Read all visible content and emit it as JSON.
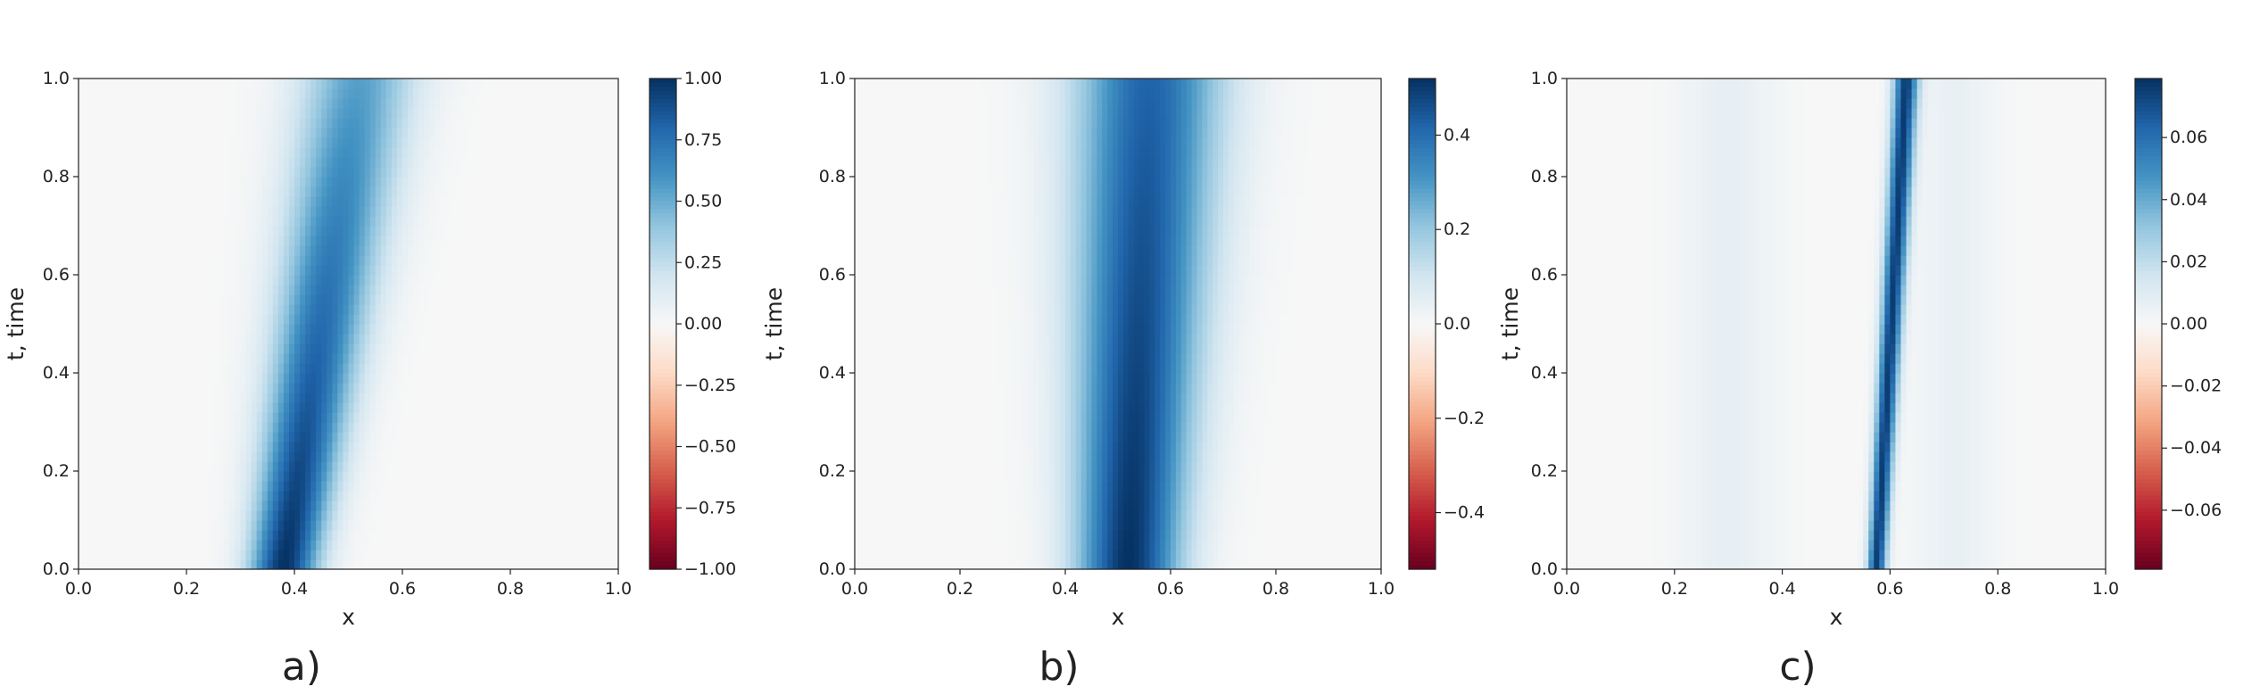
{
  "chart_data": [
    {
      "type": "heatmap",
      "panel_label": "a)",
      "xlabel": "x",
      "ylabel": "t, time",
      "xlim": [
        0.0,
        1.0
      ],
      "ylim": [
        0.0,
        1.0
      ],
      "xticks": [
        "0.0",
        "0.2",
        "0.4",
        "0.6",
        "0.8",
        "1.0"
      ],
      "yticks": [
        "0.0",
        "0.2",
        "0.4",
        "0.6",
        "0.8",
        "1.0"
      ],
      "colorbar": {
        "range": [
          -1.0,
          1.0
        ],
        "ticks": [
          1.0,
          0.75,
          0.5,
          0.25,
          0.0,
          -0.25,
          -0.5,
          -0.75,
          -1.0
        ],
        "tick_labels": [
          "1.00",
          "0.75",
          "0.50",
          "0.25",
          "0.00",
          "−0.25",
          "−0.50",
          "−0.75",
          "−1.00"
        ],
        "colormap": "RdBu"
      },
      "features": [
        {
          "kind": "band",
          "t0_center": 0.38,
          "t1_center": 0.52,
          "width0": 0.045,
          "width1": 0.075,
          "amp0": 1.0,
          "amp1": 0.55
        }
      ]
    },
    {
      "type": "heatmap",
      "panel_label": "b)",
      "xlabel": "x",
      "ylabel": "t, time",
      "xlim": [
        0.0,
        1.0
      ],
      "ylim": [
        0.0,
        1.0
      ],
      "xticks": [
        "0.0",
        "0.2",
        "0.4",
        "0.6",
        "0.8",
        "1.0"
      ],
      "yticks": [
        "0.0",
        "0.2",
        "0.4",
        "0.6",
        "0.8",
        "1.0"
      ],
      "colorbar": {
        "range": [
          -0.52,
          0.52
        ],
        "ticks": [
          0.4,
          0.2,
          0.0,
          -0.2,
          -0.4
        ],
        "tick_labels": [
          "0.4",
          "0.2",
          "0.0",
          "−0.2",
          "−0.4"
        ],
        "colormap": "RdBu"
      },
      "features": [
        {
          "kind": "band",
          "t0_center": 0.52,
          "t1_center": 0.56,
          "width0": 0.07,
          "width1": 0.1,
          "amp0": 0.52,
          "amp1": 0.42
        }
      ]
    },
    {
      "type": "heatmap",
      "panel_label": "c)",
      "xlabel": "x",
      "ylabel": "t, time",
      "xlim": [
        0.0,
        1.0
      ],
      "ylim": [
        0.0,
        1.0
      ],
      "xticks": [
        "0.0",
        "0.2",
        "0.4",
        "0.6",
        "0.8",
        "1.0"
      ],
      "yticks": [
        "0.0",
        "0.2",
        "0.4",
        "0.6",
        "0.8",
        "1.0"
      ],
      "colorbar": {
        "range": [
          -0.079,
          0.079
        ],
        "ticks": [
          0.06,
          0.04,
          0.02,
          0.0,
          -0.02,
          -0.04,
          -0.06
        ],
        "tick_labels": [
          "0.06",
          "0.04",
          "0.02",
          "0.00",
          "−0.02",
          "−0.04",
          "−0.06"
        ],
        "colormap": "RdBu"
      },
      "features": [
        {
          "kind": "band",
          "t0_center": 0.575,
          "t1_center": 0.63,
          "width0": 0.012,
          "width1": 0.016,
          "amp0": 0.075,
          "amp1": 0.075
        },
        {
          "kind": "band",
          "t0_center": 0.3,
          "t1_center": 0.3,
          "width0": 0.06,
          "width1": 0.06,
          "amp0": 0.007,
          "amp1": 0.007
        },
        {
          "kind": "band",
          "t0_center": 0.72,
          "t1_center": 0.72,
          "width0": 0.05,
          "width1": 0.05,
          "amp0": 0.006,
          "amp1": 0.006
        }
      ]
    }
  ]
}
